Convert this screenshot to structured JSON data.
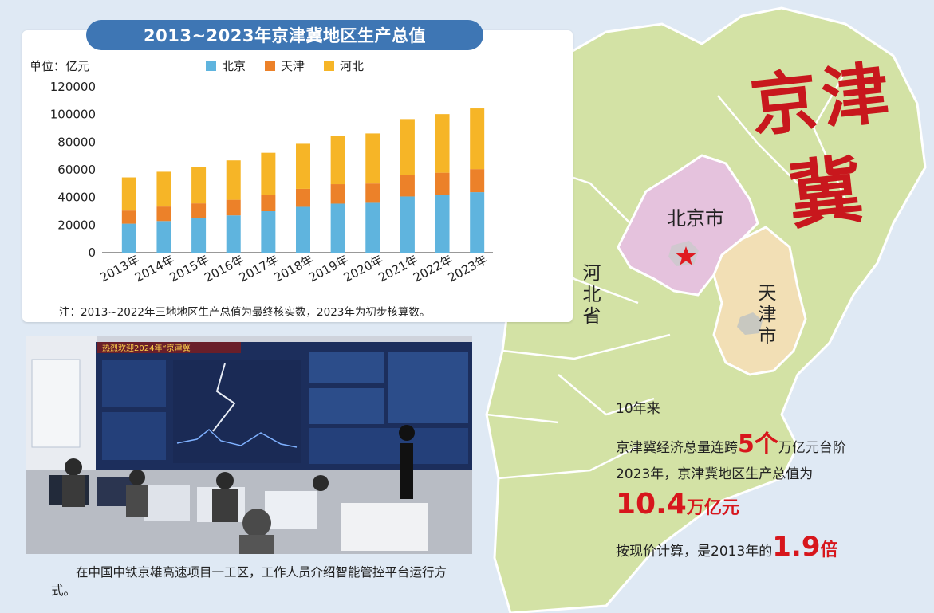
{
  "chart_data": {
    "type": "bar",
    "stacked": true,
    "title": "2013~2023年京津冀地区生产总值",
    "unit_label": "单位：亿元",
    "categories": [
      "2013年",
      "2014年",
      "2015年",
      "2016年",
      "2017年",
      "2018年",
      "2019年",
      "2020年",
      "2021年",
      "2022年",
      "2023年"
    ],
    "series": [
      {
        "name": "北京",
        "color": "#5fb4de",
        "values": [
          21000,
          22900,
          24800,
          27000,
          30000,
          33200,
          35500,
          36100,
          40700,
          41600,
          43800
        ]
      },
      {
        "name": "天津",
        "color": "#ec8129",
        "values": [
          9500,
          10500,
          10900,
          11300,
          11700,
          13000,
          14100,
          14000,
          15600,
          16300,
          16700
        ]
      },
      {
        "name": "河北",
        "color": "#f6b527",
        "values": [
          24000,
          25200,
          26300,
          28500,
          30600,
          32600,
          35100,
          36200,
          40400,
          42400,
          43900
        ]
      }
    ],
    "yticks": [
      0,
      20000,
      40000,
      60000,
      80000,
      100000,
      120000
    ],
    "ylim": [
      0,
      120000
    ],
    "note": "注：2013~2022年三地地区生产总值为最终核实数，2023年为初步核算数。"
  },
  "photo": {
    "banner_text": "热烈欢迎2024年“京津冀",
    "caption": "在中国中铁京雄高速项目一工区，工作人员介绍智能管控平台运行方式。"
  },
  "map": {
    "big_title_1": "京津",
    "big_title_2": "冀",
    "beijing": "北京市",
    "tianjin": "天津市",
    "hebei": "河北省"
  },
  "stats": {
    "line1": "10年来",
    "line2_pre": "京津冀经济总量连跨",
    "line2_num": "5个",
    "line2_post": "万亿元台阶",
    "line3": "2023年，京津冀地区生产总值为",
    "line4_num": "10.4",
    "line4_unit": "万亿元",
    "line5_pre": "按现价计算，是2013年的",
    "line5_num": "1.9",
    "line5_post": "倍"
  }
}
